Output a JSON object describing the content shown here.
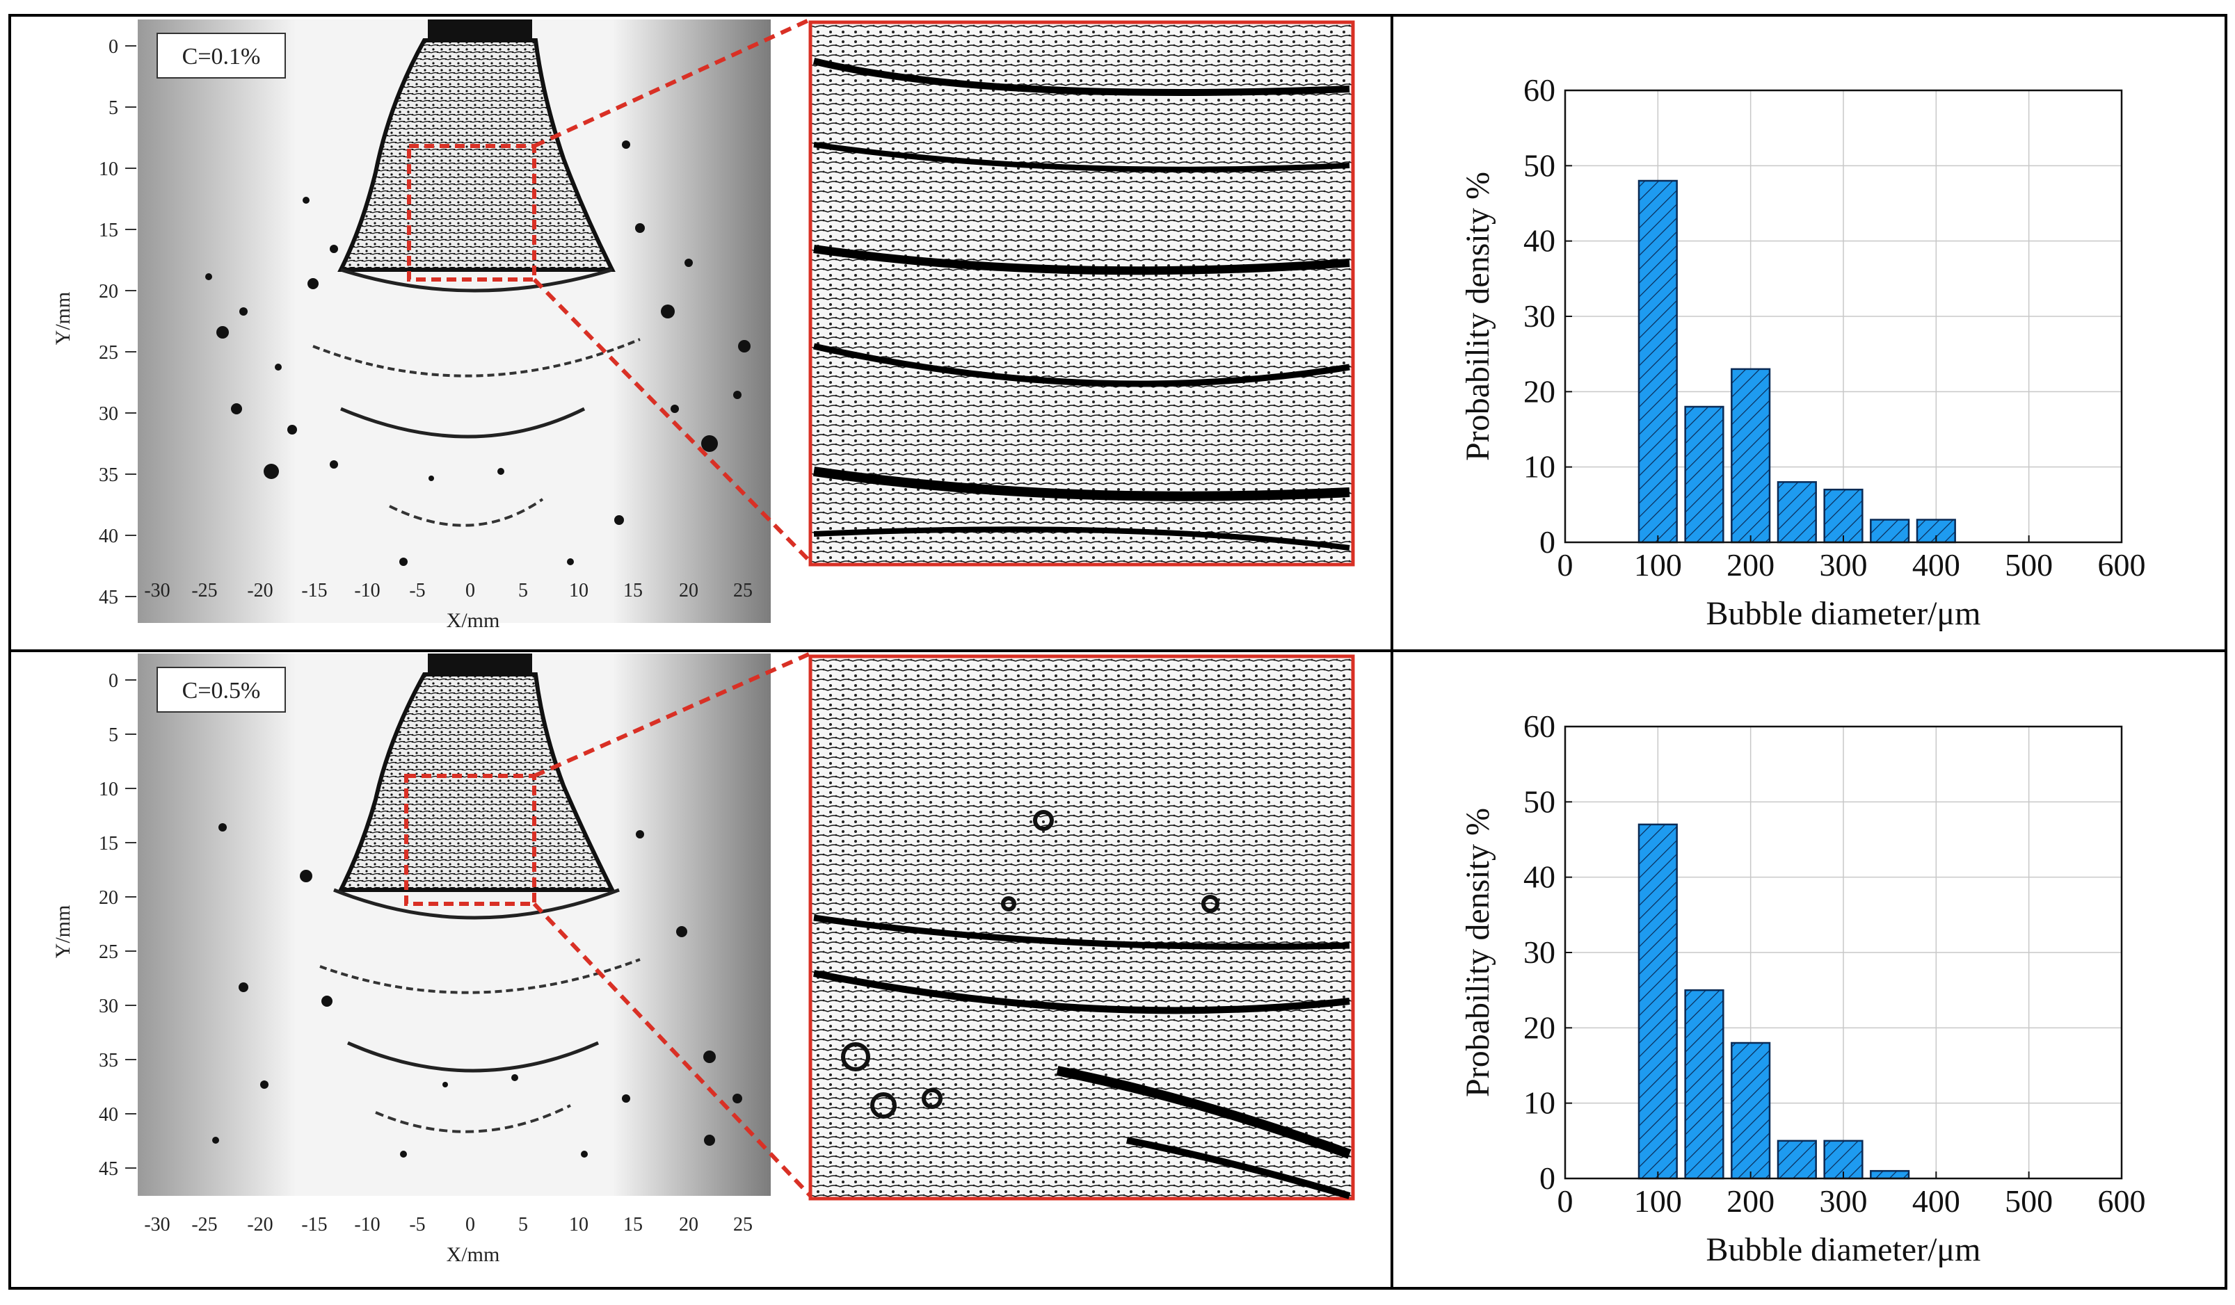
{
  "figure": {
    "rows": [
      {
        "photo": {
          "label": "C=0.1%",
          "x_axis_label": "X/mm",
          "y_axis_label": "Y/mm",
          "x_ticks": [
            "-30",
            "-25",
            "-20",
            "-15",
            "-10",
            "-5",
            "0",
            "5",
            "10",
            "15",
            "20",
            "25"
          ],
          "y_ticks": [
            "0",
            "5",
            "10",
            "15",
            "20",
            "25",
            "30",
            "35",
            "40",
            "45"
          ]
        }
      },
      {
        "photo": {
          "label": "C=0.5%",
          "x_axis_label": "X/mm",
          "y_axis_label": "Y/mm",
          "x_ticks": [
            "-30",
            "-25",
            "-20",
            "-15",
            "-10",
            "-5",
            "0",
            "5",
            "10",
            "15",
            "20",
            "25"
          ],
          "y_ticks": [
            "0",
            "5",
            "10",
            "15",
            "20",
            "25",
            "30",
            "35",
            "40",
            "45"
          ]
        }
      }
    ],
    "colors": {
      "bar_fill": "#1e9bf0",
      "bar_edge": "#0a2a55",
      "highlight": "#d93025",
      "grid": "#c8c8c8"
    }
  },
  "chart_data": [
    {
      "type": "bar",
      "title": "",
      "xlabel": "Bubble diameter/μm",
      "ylabel": "Probability density %",
      "x": [
        100,
        150,
        200,
        250,
        300,
        350,
        400
      ],
      "values": [
        48,
        18,
        23,
        8,
        7,
        3,
        3
      ],
      "xlim": [
        0,
        600
      ],
      "ylim": [
        0,
        60
      ],
      "x_ticks": [
        "0",
        "100",
        "200",
        "300",
        "400",
        "500",
        "600"
      ],
      "y_ticks": [
        "0",
        "10",
        "20",
        "30",
        "40",
        "50",
        "60"
      ],
      "grid": true,
      "bar_pattern": "diagonal-hatch"
    },
    {
      "type": "bar",
      "title": "",
      "xlabel": "Bubble diameter/μm",
      "ylabel": "Probability density %",
      "x": [
        100,
        150,
        200,
        250,
        300,
        350
      ],
      "values": [
        47,
        25,
        18,
        5,
        5,
        1
      ],
      "xlim": [
        0,
        600
      ],
      "ylim": [
        0,
        60
      ],
      "x_ticks": [
        "0",
        "100",
        "200",
        "300",
        "400",
        "500",
        "600"
      ],
      "y_ticks": [
        "0",
        "10",
        "20",
        "30",
        "40",
        "50",
        "60"
      ],
      "grid": true,
      "bar_pattern": "diagonal-hatch"
    }
  ]
}
